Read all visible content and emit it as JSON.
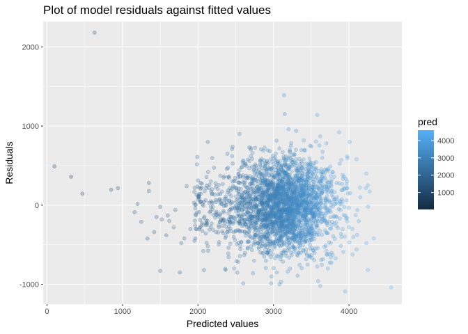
{
  "chart_data": {
    "type": "scatter",
    "title": "Plot of model residuals against fitted values",
    "xlabel": "Predicted values",
    "ylabel": "Residuals",
    "xlim": [
      -50,
      4700
    ],
    "ylim": [
      -1250,
      2320
    ],
    "x_ticks": [
      0,
      1000,
      2000,
      3000,
      4000
    ],
    "y_ticks": [
      -1000,
      0,
      1000,
      2000
    ],
    "x_tick_labels": [
      "0",
      "1000",
      "2000",
      "3000",
      "4000"
    ],
    "y_tick_labels": [
      "-1000",
      "0",
      "1000",
      "2000"
    ],
    "grid": true,
    "point_alpha": 0.25,
    "legend": {
      "title": "pred",
      "placement": "right",
      "range": [
        20,
        4600
      ],
      "ticks": [
        1000,
        2000,
        3000,
        4000
      ],
      "tick_labels": [
        "1000",
        "2000",
        "3000",
        "4000"
      ],
      "color_low": "#132B43",
      "color_high": "#56B1F7"
    },
    "points": [
      [
        630,
        2180
      ],
      [
        100,
        490
      ],
      [
        320,
        360
      ],
      [
        470,
        145
      ],
      [
        850,
        195
      ],
      [
        940,
        215
      ],
      [
        1350,
        280
      ],
      [
        1350,
        180
      ],
      [
        1160,
        -90
      ],
      [
        1200,
        15
      ],
      [
        1250,
        -210
      ],
      [
        1330,
        -420
      ],
      [
        1420,
        -340
      ],
      [
        1500,
        -830
      ],
      [
        1520,
        -180
      ],
      [
        1580,
        -380
      ],
      [
        1760,
        -850
      ],
      [
        1780,
        -480
      ],
      [
        1850,
        240
      ],
      [
        1900,
        -300
      ],
      [
        2070,
        -580
      ],
      [
        2080,
        -820
      ],
      [
        2130,
        800
      ],
      [
        2170,
        300
      ],
      [
        1500,
        -20
      ],
      [
        1600,
        -130
      ],
      [
        1700,
        -60
      ],
      [
        1820,
        -420
      ],
      [
        2000,
        70
      ],
      [
        1680,
        -280
      ],
      [
        1450,
        -150
      ],
      [
        1620,
        -200
      ],
      [
        1950,
        30
      ],
      [
        3140,
        1390
      ],
      [
        3150,
        1150
      ],
      [
        3580,
        1140
      ],
      [
        3200,
        960
      ],
      [
        3300,
        940
      ],
      [
        3870,
        920
      ],
      [
        2550,
        900
      ],
      [
        3620,
        870
      ],
      [
        3400,
        820
      ],
      [
        4010,
        800
      ],
      [
        3700,
        780
      ],
      [
        2450,
        710
      ],
      [
        2700,
        720
      ],
      [
        4230,
        400
      ],
      [
        4250,
        250
      ],
      [
        4330,
        -420
      ],
      [
        4560,
        -1040
      ],
      [
        4250,
        -820
      ],
      [
        3950,
        -1090
      ],
      [
        3590,
        -960
      ],
      [
        3620,
        -1020
      ],
      [
        3080,
        -1000
      ],
      [
        2970,
        -990
      ],
      [
        2600,
        -990
      ],
      [
        2480,
        -800
      ],
      [
        2730,
        -860
      ],
      [
        3320,
        -890
      ],
      [
        3720,
        -800
      ],
      [
        4100,
        -560
      ],
      [
        4230,
        -480
      ],
      [
        4100,
        580
      ],
      [
        3900,
        -400
      ],
      [
        4150,
        100
      ]
    ]
  }
}
